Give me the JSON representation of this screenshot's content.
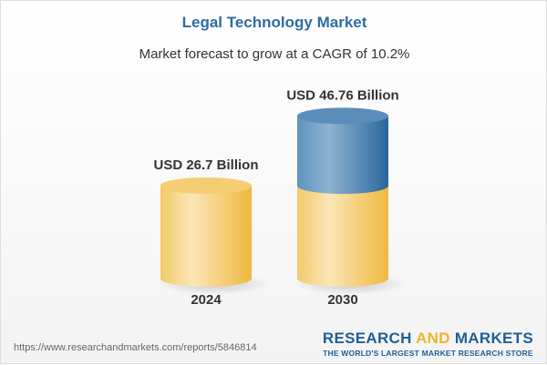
{
  "chart_data": {
    "type": "bar",
    "title": "Legal Technology Market",
    "subtitle": "Market forecast to grow at a CAGR of 10.2%",
    "categories": [
      "2024",
      "2030"
    ],
    "values": [
      26.7,
      46.76
    ],
    "data_labels": [
      "USD 26.7 Billion",
      "USD 46.76 Billion"
    ],
    "unit": "USD Billion",
    "grid": false,
    "colors": {
      "base": "#f2c45a",
      "growth": "#3d7bb0",
      "title": "#2c6da4"
    }
  },
  "footer": {
    "url": "https://www.researchandmarkets.com/reports/5846814",
    "logo_line1_a": "RESEARCH ",
    "logo_line1_b": "AND",
    "logo_line1_c": " MARKETS",
    "logo_line2": "THE WORLD'S LARGEST MARKET RESEARCH STORE"
  }
}
